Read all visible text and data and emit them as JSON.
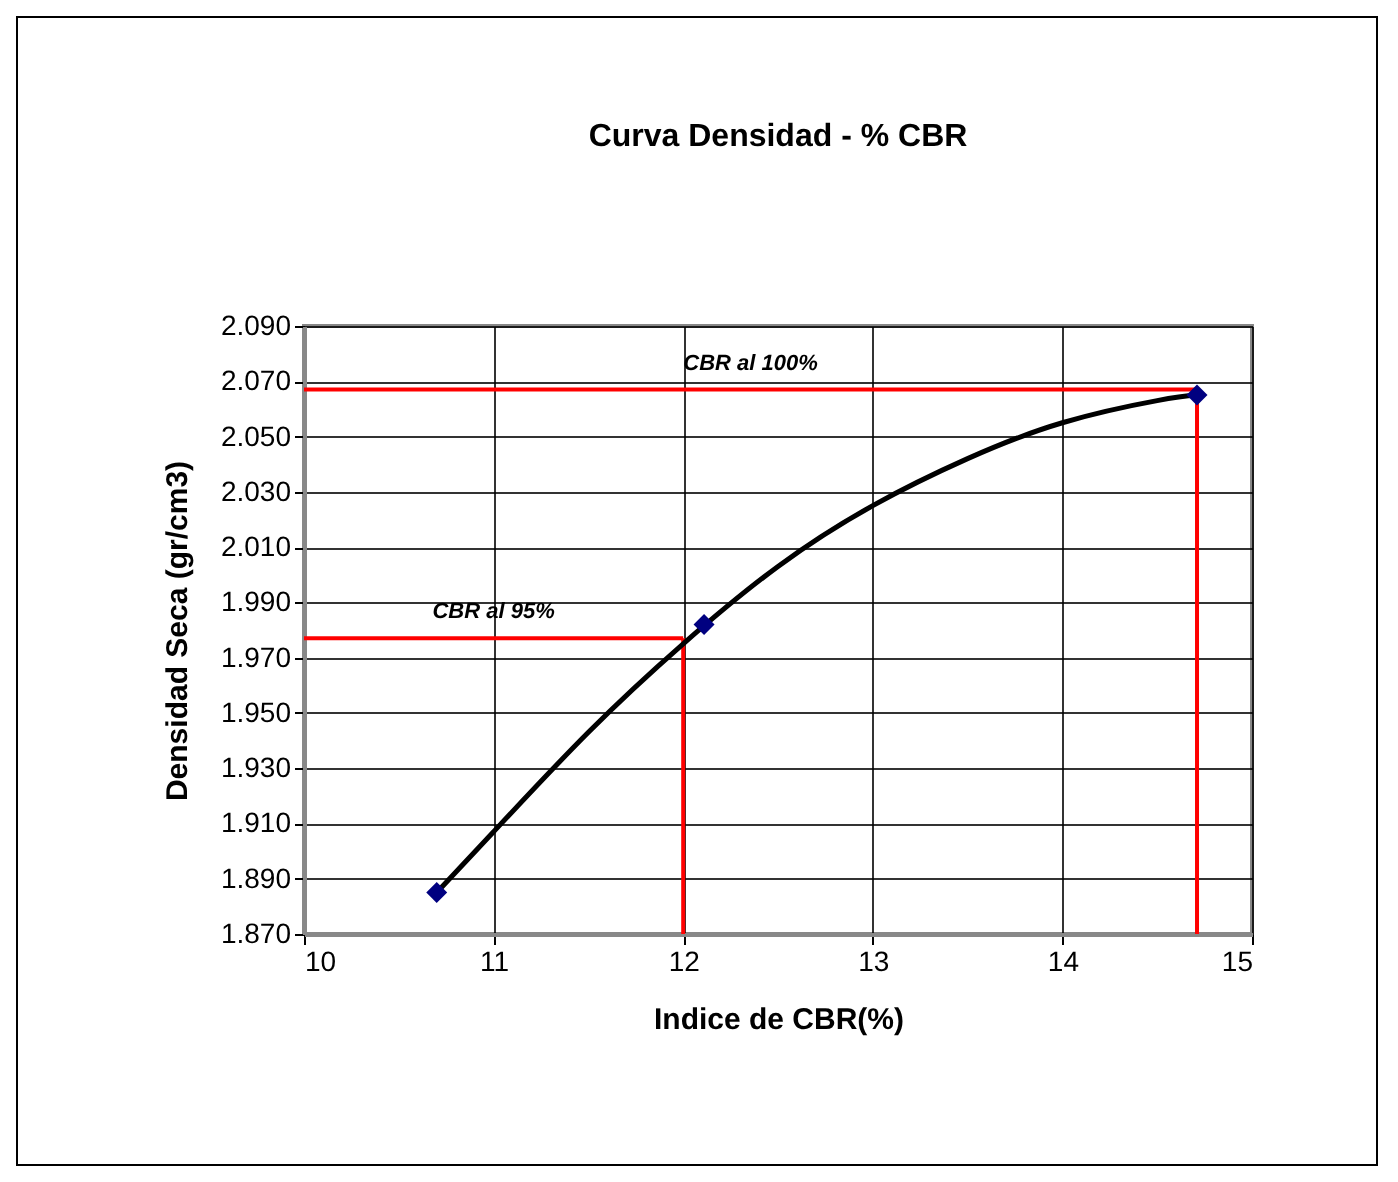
{
  "chart_data": {
    "type": "scatter",
    "title": "Curva Densidad - % CBR",
    "xlabel": "Indice de CBR(%)",
    "ylabel": "Densidad Seca (gr/cm3)",
    "xlim": [
      10,
      15
    ],
    "xticks": [
      10,
      11,
      12,
      13,
      14,
      15
    ],
    "ylim": [
      1.87,
      2.09
    ],
    "yticks": [
      {
        "value": 1.87,
        "label": "1.870"
      },
      {
        "value": 1.89,
        "label": "1.890"
      },
      {
        "value": 1.91,
        "label": "1.910"
      },
      {
        "value": 1.93,
        "label": "1.930"
      },
      {
        "value": 1.95,
        "label": "1.950"
      },
      {
        "value": 1.97,
        "label": "1.970"
      },
      {
        "value": 1.99,
        "label": "1.990"
      },
      {
        "value": 2.01,
        "label": "2.010"
      },
      {
        "value": 2.03,
        "label": "2.030"
      },
      {
        "value": 2.05,
        "label": "2.050"
      },
      {
        "value": 2.07,
        "label": "2.070"
      },
      {
        "value": 2.09,
        "label": "2.090"
      }
    ],
    "grid": true,
    "marker": "diamond",
    "series": [
      {
        "type": "scatter",
        "color": "#000080",
        "x": [
          10.7,
          12.11,
          14.71
        ],
        "values": [
          1.885,
          1.982,
          2.065
        ]
      },
      {
        "type": "line",
        "color": "#000000",
        "marker": "none",
        "line_style": "solid",
        "x": [
          10.7,
          11,
          11.5,
          12,
          12.5,
          13,
          13.5,
          14,
          14.5,
          14.71
        ],
        "values": [
          1.885,
          1.907,
          1.943,
          1.975,
          2.003,
          2.025,
          2.042,
          2.055,
          2.063,
          2.065
        ]
      }
    ],
    "ref_lines": [
      {
        "axis": "y",
        "value": 1.977,
        "label": "CBR al 95%",
        "color": "#ff0000"
      },
      {
        "axis": "x",
        "value": 12.0,
        "color": "#ff0000"
      },
      {
        "axis": "y",
        "value": 2.067,
        "label": "CBR al 100%",
        "color": "#ff0000"
      },
      {
        "axis": "x",
        "value": 14.71,
        "color": "#ff0000"
      }
    ]
  }
}
